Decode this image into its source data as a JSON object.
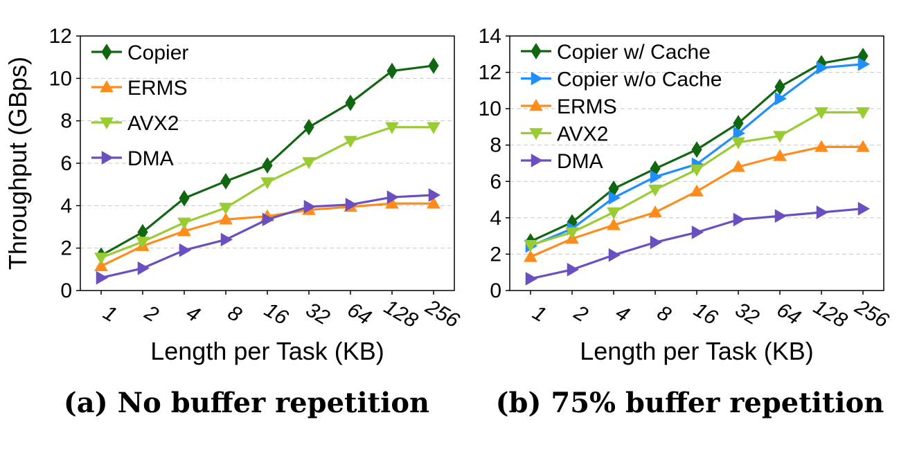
{
  "chart_data": [
    {
      "type": "line",
      "caption": "(a) No buffer repetition",
      "xlabel": "Length per Task (KB)",
      "ylabel": "Throughput (GBps)",
      "categories": [
        "1",
        "2",
        "4",
        "8",
        "16",
        "32",
        "64",
        "128",
        "256"
      ],
      "ylim": [
        0,
        12
      ],
      "yticks": [
        "0",
        "2",
        "4",
        "6",
        "8",
        "10",
        "12"
      ],
      "grid": true,
      "legend_position": "top-left",
      "series": [
        {
          "name": "Copier",
          "color": "#116611",
          "marker": "diamond",
          "values": [
            1.65,
            2.75,
            4.35,
            5.15,
            5.9,
            7.7,
            8.85,
            10.35,
            10.6
          ]
        },
        {
          "name": "ERMS",
          "color": "#ff8c1a",
          "marker": "triangle-up",
          "values": [
            1.15,
            2.1,
            2.8,
            3.35,
            3.5,
            3.8,
            3.95,
            4.1,
            4.1
          ]
        },
        {
          "name": "AVX2",
          "color": "#99cc33",
          "marker": "triangle-down",
          "values": [
            1.55,
            2.3,
            3.2,
            3.9,
            5.1,
            6.05,
            7.05,
            7.7,
            7.7
          ]
        },
        {
          "name": "DMA",
          "color": "#6a4fc1",
          "marker": "triangle-right",
          "values": [
            0.6,
            1.05,
            1.9,
            2.4,
            3.35,
            3.95,
            4.05,
            4.4,
            4.5
          ]
        }
      ]
    },
    {
      "type": "line",
      "caption": "(b) 75% buffer repetition",
      "xlabel": "Length per Task (KB)",
      "ylabel": "",
      "categories": [
        "1",
        "2",
        "4",
        "8",
        "16",
        "32",
        "64",
        "128",
        "256"
      ],
      "ylim": [
        0,
        14
      ],
      "yticks": [
        "0",
        "2",
        "4",
        "6",
        "8",
        "10",
        "12",
        "14"
      ],
      "grid": true,
      "legend_position": "top-left",
      "series": [
        {
          "name": "Copier w/ Cache",
          "color": "#116611",
          "marker": "diamond",
          "values": [
            2.7,
            3.75,
            5.6,
            6.7,
            7.75,
            9.2,
            11.2,
            12.5,
            12.9
          ]
        },
        {
          "name": "Copier w/o Cache",
          "color": "#1f8fff",
          "marker": "triangle-right",
          "values": [
            2.45,
            3.4,
            5.1,
            6.25,
            6.95,
            8.65,
            10.55,
            12.25,
            12.45
          ]
        },
        {
          "name": "ERMS",
          "color": "#ff8c1a",
          "marker": "triangle-up",
          "values": [
            1.85,
            2.85,
            3.6,
            4.3,
            5.45,
            6.8,
            7.4,
            7.9,
            7.9
          ]
        },
        {
          "name": "AVX2",
          "color": "#99cc33",
          "marker": "triangle-down",
          "values": [
            2.5,
            3.2,
            4.3,
            5.55,
            6.65,
            8.15,
            8.5,
            9.8,
            9.8
          ]
        },
        {
          "name": "DMA",
          "color": "#6a4fc1",
          "marker": "triangle-right",
          "values": [
            0.65,
            1.15,
            1.95,
            2.65,
            3.2,
            3.9,
            4.1,
            4.3,
            4.5
          ]
        }
      ]
    }
  ]
}
